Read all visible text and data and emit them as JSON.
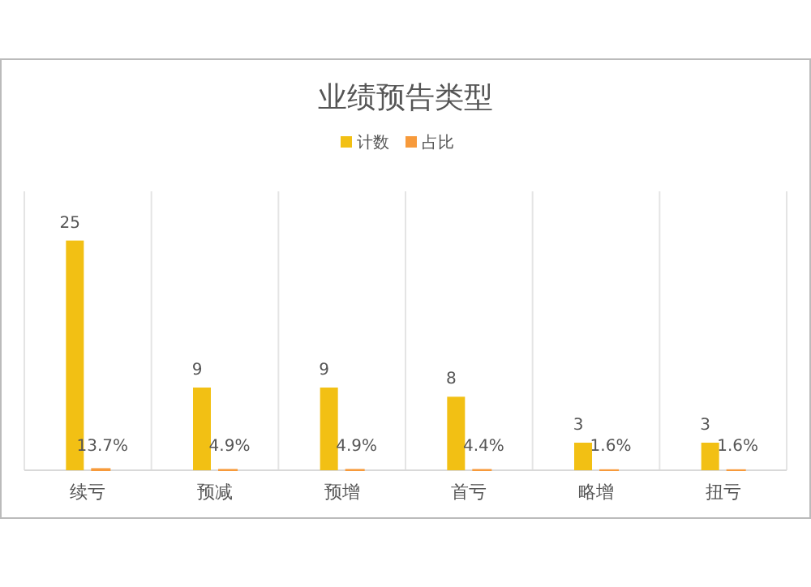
{
  "chart_data": {
    "type": "bar",
    "title": "业绩预告类型",
    "categories": [
      "续亏",
      "预减",
      "预增",
      "首亏",
      "略增",
      "扭亏"
    ],
    "series": [
      {
        "name": "计数",
        "color": "#f2c014",
        "values": [
          25,
          9,
          9,
          8,
          3,
          3
        ],
        "value_labels": [
          "25",
          "9",
          "9",
          "8",
          "3",
          "3"
        ]
      },
      {
        "name": "占比",
        "color": "#f79a3b",
        "values": [
          0.137,
          0.049,
          0.049,
          0.044,
          0.016,
          0.016
        ],
        "value_labels": [
          "13.7%",
          "4.9%",
          "4.9%",
          "4.4%",
          "1.6%",
          "1.6%"
        ]
      }
    ],
    "ylim": [
      0,
      30
    ],
    "legend": "top",
    "tick_labels": "x"
  }
}
